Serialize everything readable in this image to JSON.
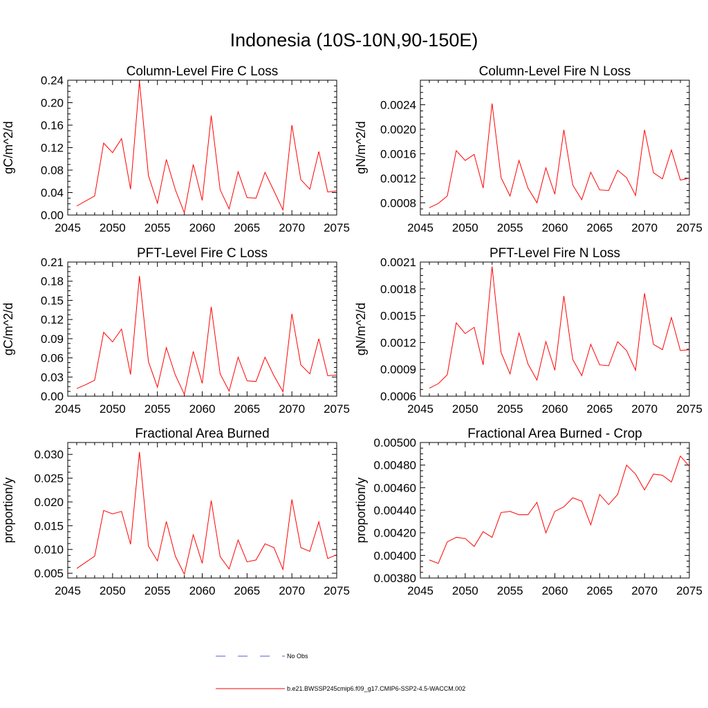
{
  "figure": {
    "title": "Indonesia (10S-10N,90-150E)"
  },
  "legend": {
    "entries": [
      {
        "label": "No Obs",
        "color": "#4b5bd6",
        "style": "dashed"
      },
      {
        "label": "b.e21.BWSSP245cmip6.f09_g17.CMIP6-SSP2-4.5-WACCM.002",
        "color": "#ff0000",
        "style": "solid"
      }
    ]
  },
  "chart_data": [
    {
      "type": "line",
      "title": "Column-Level Fire C Loss",
      "ylabel": "gC/m^2/d",
      "xlabel": "",
      "xlim": [
        2045,
        2075
      ],
      "ylim": [
        0.0,
        0.24
      ],
      "xticks": [
        2045,
        2050,
        2055,
        2060,
        2065,
        2070,
        2075
      ],
      "yticks": [
        0.0,
        0.04,
        0.08,
        0.12,
        0.16,
        0.2,
        0.24
      ],
      "ytick_labels": [
        "0.00",
        "0.04",
        "0.08",
        "0.12",
        "0.16",
        "0.20",
        "0.24"
      ],
      "series": [
        {
          "color": "#ff0000",
          "x": [
            2046,
            2047,
            2048,
            2049,
            2050,
            2051,
            2052,
            2053,
            2054,
            2055,
            2056,
            2057,
            2058,
            2059,
            2060,
            2061,
            2062,
            2063,
            2064,
            2065,
            2066,
            2067,
            2068,
            2069,
            2070,
            2071,
            2072,
            2073,
            2074,
            2075
          ],
          "y": [
            0.016,
            0.025,
            0.034,
            0.128,
            0.111,
            0.136,
            0.046,
            0.238,
            0.07,
            0.021,
            0.099,
            0.045,
            0.004,
            0.09,
            0.026,
            0.177,
            0.045,
            0.011,
            0.077,
            0.031,
            0.03,
            0.076,
            0.043,
            0.009,
            0.16,
            0.063,
            0.046,
            0.113,
            0.041,
            0.043
          ]
        }
      ]
    },
    {
      "type": "line",
      "title": "Column-Level Fire N Loss",
      "ylabel": "gN/m^2/d",
      "xlabel": "",
      "xlim": [
        2045,
        2075
      ],
      "ylim": [
        0.0006,
        0.0028
      ],
      "xticks": [
        2045,
        2050,
        2055,
        2060,
        2065,
        2070,
        2075
      ],
      "yticks": [
        0.0008,
        0.0012,
        0.0016,
        0.002,
        0.0024
      ],
      "ytick_labels": [
        "0.0008",
        "0.0012",
        "0.0016",
        "0.0020",
        "0.0024"
      ],
      "series": [
        {
          "color": "#ff0000",
          "x": [
            2046,
            2047,
            2048,
            2049,
            2050,
            2051,
            2052,
            2053,
            2054,
            2055,
            2056,
            2057,
            2058,
            2059,
            2060,
            2061,
            2062,
            2063,
            2064,
            2065,
            2066,
            2067,
            2068,
            2069,
            2070,
            2071,
            2072,
            2073,
            2074,
            2075
          ],
          "y": [
            0.00072,
            0.00079,
            0.00091,
            0.00165,
            0.00149,
            0.00159,
            0.00104,
            0.00242,
            0.00121,
            0.00091,
            0.00149,
            0.00104,
            0.0008,
            0.00137,
            0.00094,
            0.00199,
            0.00109,
            0.00085,
            0.0013,
            0.00101,
            0.001,
            0.00133,
            0.00121,
            0.00092,
            0.00199,
            0.00129,
            0.00119,
            0.00166,
            0.00117,
            0.0012
          ]
        }
      ]
    },
    {
      "type": "line",
      "title": "PFT-Level Fire C Loss",
      "ylabel": "gC/m^2/d",
      "xlabel": "",
      "xlim": [
        2045,
        2075
      ],
      "ylim": [
        0.0,
        0.21
      ],
      "xticks": [
        2045,
        2050,
        2055,
        2060,
        2065,
        2070,
        2075
      ],
      "yticks": [
        0.0,
        0.03,
        0.06,
        0.09,
        0.12,
        0.15,
        0.18,
        0.21
      ],
      "ytick_labels": [
        "0.00",
        "0.03",
        "0.06",
        "0.09",
        "0.12",
        "0.15",
        "0.18",
        "0.21"
      ],
      "series": [
        {
          "color": "#ff0000",
          "x": [
            2046,
            2047,
            2048,
            2049,
            2050,
            2051,
            2052,
            2053,
            2054,
            2055,
            2056,
            2057,
            2058,
            2059,
            2060,
            2061,
            2062,
            2063,
            2064,
            2065,
            2066,
            2067,
            2068,
            2069,
            2070,
            2071,
            2072,
            2073,
            2074,
            2075
          ],
          "y": [
            0.012,
            0.018,
            0.025,
            0.1,
            0.085,
            0.105,
            0.034,
            0.188,
            0.054,
            0.014,
            0.076,
            0.033,
            0.003,
            0.07,
            0.02,
            0.14,
            0.035,
            0.008,
            0.061,
            0.024,
            0.023,
            0.061,
            0.032,
            0.007,
            0.129,
            0.049,
            0.035,
            0.09,
            0.032,
            0.033
          ]
        }
      ]
    },
    {
      "type": "line",
      "title": "PFT-Level Fire N Loss",
      "ylabel": "gN/m^2/d",
      "xlabel": "",
      "xlim": [
        2045,
        2075
      ],
      "ylim": [
        0.0006,
        0.0021
      ],
      "xticks": [
        2045,
        2050,
        2055,
        2060,
        2065,
        2070,
        2075
      ],
      "yticks": [
        0.0006,
        0.0009,
        0.0012,
        0.0015,
        0.0018,
        0.0021
      ],
      "ytick_labels": [
        "0.0006",
        "0.0009",
        "0.0012",
        "0.0015",
        "0.0018",
        "0.0021"
      ],
      "series": [
        {
          "color": "#ff0000",
          "x": [
            2046,
            2047,
            2048,
            2049,
            2050,
            2051,
            2052,
            2053,
            2054,
            2055,
            2056,
            2057,
            2058,
            2059,
            2060,
            2061,
            2062,
            2063,
            2064,
            2065,
            2066,
            2067,
            2068,
            2069,
            2070,
            2071,
            2072,
            2073,
            2074,
            2075
          ],
          "y": [
            0.00069,
            0.00074,
            0.00084,
            0.00142,
            0.0013,
            0.00137,
            0.00095,
            0.00205,
            0.00109,
            0.00085,
            0.00131,
            0.00096,
            0.00078,
            0.00121,
            0.00089,
            0.00172,
            0.00101,
            0.00083,
            0.00118,
            0.00095,
            0.00094,
            0.00121,
            0.00111,
            0.00089,
            0.00175,
            0.00118,
            0.00112,
            0.00148,
            0.00111,
            0.00112
          ]
        }
      ]
    },
    {
      "type": "line",
      "title": "Fractional Area Burned",
      "ylabel": "proportion/y",
      "xlabel": "",
      "xlim": [
        2045,
        2075
      ],
      "ylim": [
        0.004,
        0.0325
      ],
      "xticks": [
        2045,
        2050,
        2055,
        2060,
        2065,
        2070,
        2075
      ],
      "yticks": [
        0.005,
        0.01,
        0.015,
        0.02,
        0.025,
        0.03
      ],
      "ytick_labels": [
        "0.005",
        "0.010",
        "0.015",
        "0.020",
        "0.025",
        "0.030"
      ],
      "series": [
        {
          "color": "#ff0000",
          "x": [
            2046,
            2047,
            2048,
            2049,
            2050,
            2051,
            2052,
            2053,
            2054,
            2055,
            2056,
            2057,
            2058,
            2059,
            2060,
            2061,
            2062,
            2063,
            2064,
            2065,
            2066,
            2067,
            2068,
            2069,
            2070,
            2071,
            2072,
            2073,
            2074,
            2075
          ],
          "y": [
            0.006,
            0.0073,
            0.0086,
            0.0182,
            0.0175,
            0.018,
            0.0111,
            0.0305,
            0.0107,
            0.0076,
            0.0159,
            0.0086,
            0.0048,
            0.0131,
            0.0071,
            0.0203,
            0.0085,
            0.0059,
            0.012,
            0.0074,
            0.0078,
            0.0112,
            0.0104,
            0.0058,
            0.0205,
            0.0104,
            0.0096,
            0.0158,
            0.0081,
            0.0089
          ]
        }
      ]
    },
    {
      "type": "line",
      "title": "Fractional Area Burned - Crop",
      "ylabel": "proportion/y",
      "xlabel": "",
      "xlim": [
        2045,
        2075
      ],
      "ylim": [
        0.0038,
        0.005
      ],
      "xticks": [
        2045,
        2050,
        2055,
        2060,
        2065,
        2070,
        2075
      ],
      "yticks": [
        0.0038,
        0.004,
        0.0042,
        0.0044,
        0.0046,
        0.0048,
        0.005
      ],
      "ytick_labels": [
        "0.00380",
        "0.00400",
        "0.00420",
        "0.00440",
        "0.00460",
        "0.00480",
        "0.00500"
      ],
      "series": [
        {
          "color": "#ff0000",
          "x": [
            2046,
            2047,
            2048,
            2049,
            2050,
            2051,
            2052,
            2053,
            2054,
            2055,
            2056,
            2057,
            2058,
            2059,
            2060,
            2061,
            2062,
            2063,
            2064,
            2065,
            2066,
            2067,
            2068,
            2069,
            2070,
            2071,
            2072,
            2073,
            2074,
            2075
          ],
          "y": [
            0.00396,
            0.00393,
            0.00412,
            0.00416,
            0.00415,
            0.00408,
            0.00421,
            0.00416,
            0.00438,
            0.00439,
            0.00436,
            0.00436,
            0.00447,
            0.0042,
            0.00439,
            0.00443,
            0.00451,
            0.00448,
            0.00427,
            0.00454,
            0.00445,
            0.00454,
            0.0048,
            0.00472,
            0.00458,
            0.00472,
            0.00471,
            0.00465,
            0.00488,
            0.00479
          ]
        }
      ]
    }
  ]
}
